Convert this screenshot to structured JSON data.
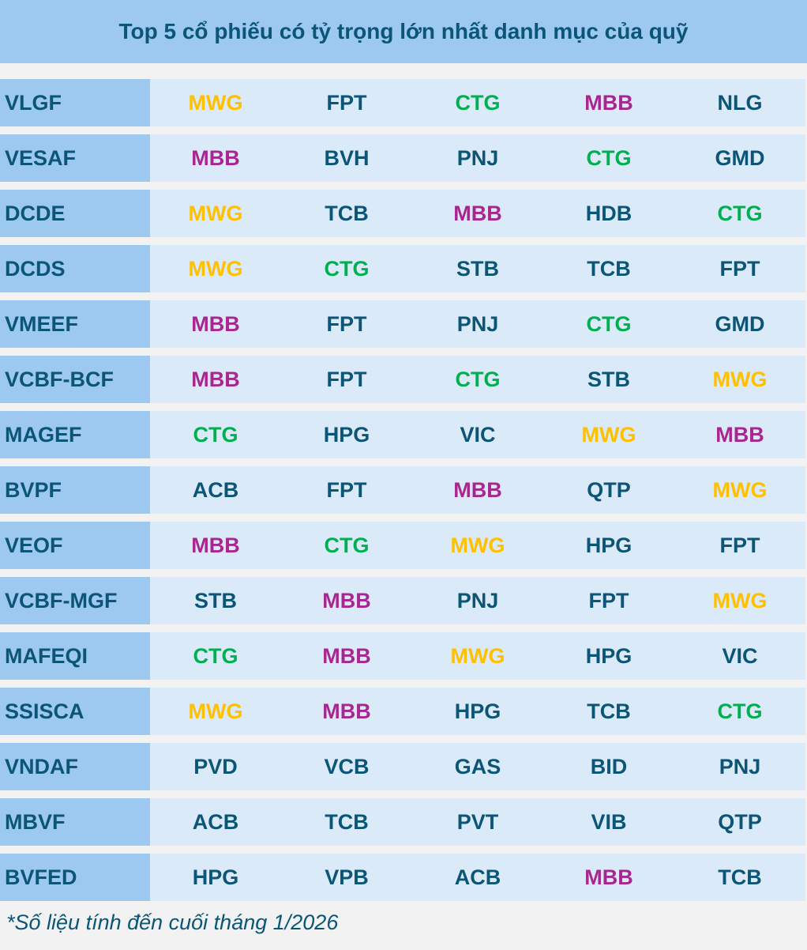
{
  "header": {
    "title": "Top 5 cổ phiếu có tỷ trọng lớn nhất danh mục của quỹ"
  },
  "table": {
    "text_color": "#0b5576",
    "highlight_colors": [
      {
        "ticker": "MWG",
        "color": "#ffc000"
      },
      {
        "ticker": "CTG",
        "color": "#00b050"
      },
      {
        "ticker": "MBB",
        "color": "#a8268f"
      }
    ],
    "rows": [
      [
        "VLGF",
        "MWG",
        "FPT",
        "CTG",
        "MBB",
        "NLG"
      ],
      [
        "VESAF",
        "MBB",
        "BVH",
        "PNJ",
        "CTG",
        "GMD"
      ],
      [
        "DCDE",
        "MWG",
        "TCB",
        "MBB",
        "HDB",
        "CTG"
      ],
      [
        "DCDS",
        "MWG",
        "CTG",
        "STB",
        "TCB",
        "FPT"
      ],
      [
        "VMEEF",
        "MBB",
        "FPT",
        "PNJ",
        "CTG",
        "GMD"
      ],
      [
        "VCBF-BCF",
        "MBB",
        "FPT",
        "CTG",
        "STB",
        "MWG"
      ],
      [
        "MAGEF",
        "CTG",
        "HPG",
        "VIC",
        "MWG",
        "MBB"
      ],
      [
        "BVPF",
        "ACB",
        "FPT",
        "MBB",
        "QTP",
        "MWG"
      ],
      [
        "VEOF",
        "MBB",
        "CTG",
        "MWG",
        "HPG",
        "FPT"
      ],
      [
        "VCBF-MGF",
        "STB",
        "MBB",
        "PNJ",
        "FPT",
        "MWG"
      ],
      [
        "MAFEQI",
        "CTG",
        "MBB",
        "MWG",
        "HPG",
        "VIC"
      ],
      [
        "SSISCA",
        "MWG",
        "MBB",
        "HPG",
        "TCB",
        "CTG"
      ],
      [
        "VNDAF",
        "PVD",
        "VCB",
        "GAS",
        "BID",
        "PNJ"
      ],
      [
        "MBVF",
        "ACB",
        "TCB",
        "PVT",
        "VIB",
        "QTP"
      ],
      [
        "BVFED",
        "HPG",
        "VPB",
        "ACB",
        "MBB",
        "TCB"
      ]
    ]
  },
  "footnote": "*Số liệu tính đến cuối tháng 1/2026"
}
